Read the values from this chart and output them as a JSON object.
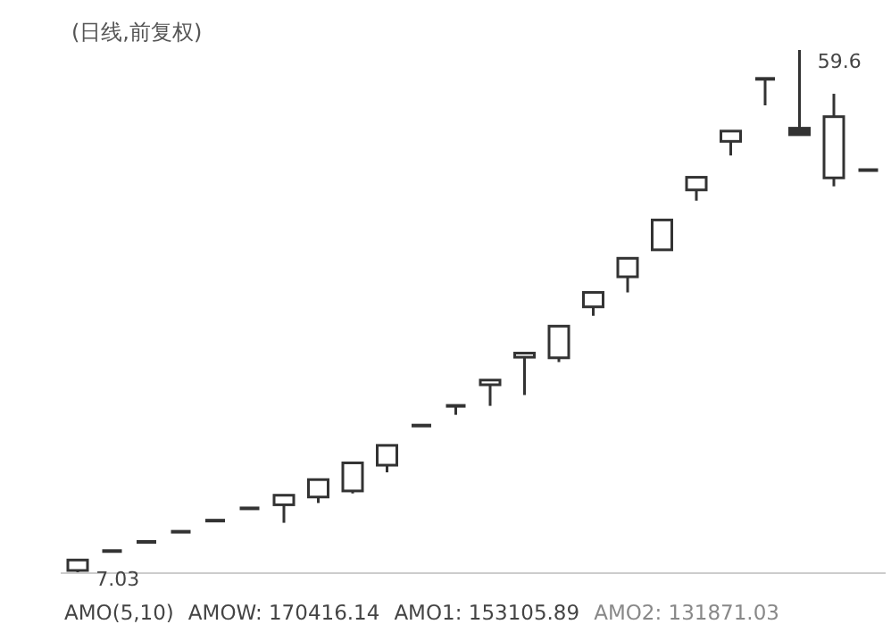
{
  "chart_data": {
    "type": "candlestick",
    "title": "(日线,前复权)",
    "categories": [
      null,
      null,
      null,
      null,
      null,
      null,
      null,
      null,
      null,
      null,
      null,
      null,
      null,
      null,
      null,
      null,
      null,
      null,
      null,
      null,
      null,
      null,
      null,
      null
    ],
    "ohlc": [
      [
        7.3,
        8.35,
        7.03,
        8.35
      ],
      [
        9.25,
        9.25,
        9.25,
        9.25
      ],
      [
        10.17,
        10.17,
        10.17,
        10.17
      ],
      [
        11.19,
        11.19,
        11.19,
        11.19
      ],
      [
        12.31,
        12.31,
        12.31,
        12.31
      ],
      [
        13.54,
        13.54,
        13.54,
        13.54
      ],
      [
        13.9,
        14.86,
        12.09,
        14.86
      ],
      [
        14.68,
        16.43,
        14.08,
        16.43
      ],
      [
        15.29,
        18.11,
        15.04,
        18.11
      ],
      [
        17.88,
        19.87,
        17.16,
        19.87
      ],
      [
        21.86,
        21.86,
        21.86,
        21.86
      ],
      [
        23.84,
        23.84,
        22.94,
        23.84
      ],
      [
        25.96,
        26.43,
        23.84,
        26.43
      ],
      [
        28.73,
        29.14,
        24.93,
        29.14
      ],
      [
        28.67,
        31.85,
        28.24,
        31.85
      ],
      [
        33.79,
        35.24,
        32.89,
        35.24
      ],
      [
        36.81,
        38.67,
        35.24,
        38.67
      ],
      [
        39.52,
        42.52,
        39.52,
        42.52
      ],
      [
        45.54,
        46.81,
        44.46,
        46.81
      ],
      [
        50.42,
        51.45,
        49.0,
        51.45
      ],
      [
        56.7,
        56.7,
        54.04,
        56.7
      ],
      [
        51.74,
        59.6,
        51.09,
        51.09
      ],
      [
        46.75,
        55.2,
        45.9,
        52.9
      ],
      [
        47.53,
        47.53,
        47.53,
        47.53
      ]
    ],
    "color": "#333333",
    "annotations": [
      "59.6",
      "7.03",
      "AMO(5,10)",
      "AMOW: 170416.14",
      "AMO1: 153105.89",
      "AMO2: 131871.03"
    ]
  }
}
